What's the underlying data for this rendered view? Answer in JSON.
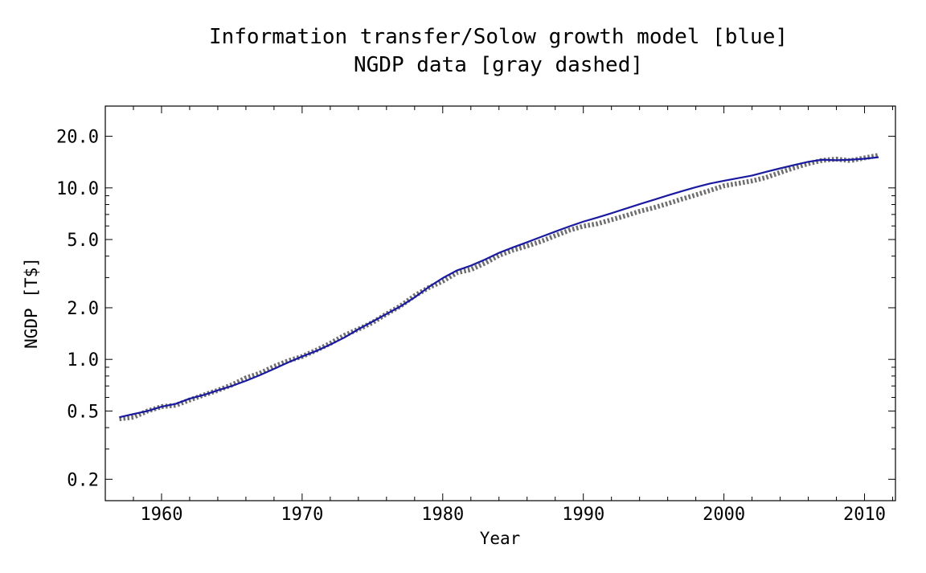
{
  "chart_data": {
    "type": "line",
    "title_lines": [
      "Information transfer/Solow growth model [blue]",
      "NGDP data [gray dashed]"
    ],
    "xlabel": "Year",
    "ylabel": "NGDP [T$]",
    "x_scale": "linear",
    "y_scale": "log",
    "xlim": [
      1956,
      2012.2
    ],
    "ylim": [
      0.15,
      30
    ],
    "x_ticks": [
      1960,
      1970,
      1980,
      1990,
      2000,
      2010
    ],
    "x_tick_labels": [
      "1960",
      "1970",
      "1980",
      "1990",
      "2000",
      "2010"
    ],
    "y_ticks": [
      0.2,
      0.5,
      1.0,
      2.0,
      5.0,
      10.0,
      20.0
    ],
    "y_tick_labels": [
      "0.2",
      "0.5",
      "1.0",
      "2.0",
      "5.0",
      "10.0",
      "20.0"
    ],
    "grid": false,
    "series": [
      {
        "color": "#1a1aa0",
        "style": "solid",
        "x": [
          1957,
          1958,
          1959,
          1960,
          1961,
          1962,
          1963,
          1964,
          1965,
          1966,
          1967,
          1968,
          1969,
          1970,
          1971,
          1972,
          1973,
          1974,
          1975,
          1976,
          1977,
          1978,
          1979,
          1980,
          1981,
          1982,
          1983,
          1984,
          1985,
          1986,
          1987,
          1988,
          1989,
          1990,
          1991,
          1992,
          1993,
          1994,
          1995,
          1996,
          1997,
          1998,
          1999,
          2000,
          2001,
          2002,
          2003,
          2004,
          2005,
          2006,
          2007,
          2008,
          2009,
          2010,
          2011
        ],
        "y": [
          0.46,
          0.48,
          0.5,
          0.53,
          0.55,
          0.59,
          0.62,
          0.66,
          0.7,
          0.75,
          0.81,
          0.88,
          0.96,
          1.04,
          1.12,
          1.22,
          1.34,
          1.5,
          1.66,
          1.84,
          2.04,
          2.3,
          2.64,
          2.98,
          3.3,
          3.52,
          3.82,
          4.18,
          4.5,
          4.82,
          5.18,
          5.56,
          5.96,
          6.36,
          6.72,
          7.12,
          7.56,
          8.04,
          8.52,
          9.04,
          9.56,
          10.1,
          10.6,
          11.0,
          11.4,
          11.8,
          12.4,
          13.0,
          13.6,
          14.2,
          14.6,
          14.5,
          14.6,
          14.8,
          15.1
        ]
      },
      {
        "color": "#555555",
        "style": "dashed",
        "x": [
          1957,
          1958,
          1959,
          1960,
          1961,
          1962,
          1963,
          1964,
          1965,
          1966,
          1967,
          1968,
          1969,
          1970,
          1971,
          1972,
          1973,
          1974,
          1975,
          1976,
          1977,
          1978,
          1979,
          1980,
          1981,
          1982,
          1983,
          1984,
          1985,
          1986,
          1987,
          1988,
          1989,
          1990,
          1991,
          1992,
          1993,
          1994,
          1995,
          1996,
          1997,
          1998,
          1999,
          2000,
          2001,
          2002,
          2003,
          2004,
          2005,
          2006,
          2007,
          2008,
          2009,
          2010,
          2011
        ],
        "y": [
          0.45,
          0.46,
          0.5,
          0.53,
          0.54,
          0.58,
          0.62,
          0.66,
          0.71,
          0.78,
          0.83,
          0.91,
          0.98,
          1.04,
          1.13,
          1.24,
          1.38,
          1.5,
          1.64,
          1.84,
          2.05,
          2.35,
          2.62,
          2.86,
          3.2,
          3.34,
          3.64,
          4.04,
          4.34,
          4.58,
          4.88,
          5.26,
          5.66,
          5.98,
          6.18,
          6.52,
          6.88,
          7.3,
          7.66,
          8.1,
          8.6,
          9.1,
          9.66,
          10.28,
          10.62,
          10.98,
          11.5,
          12.3,
          13.1,
          13.86,
          14.48,
          14.72,
          14.42,
          14.96,
          15.5
        ]
      }
    ]
  }
}
